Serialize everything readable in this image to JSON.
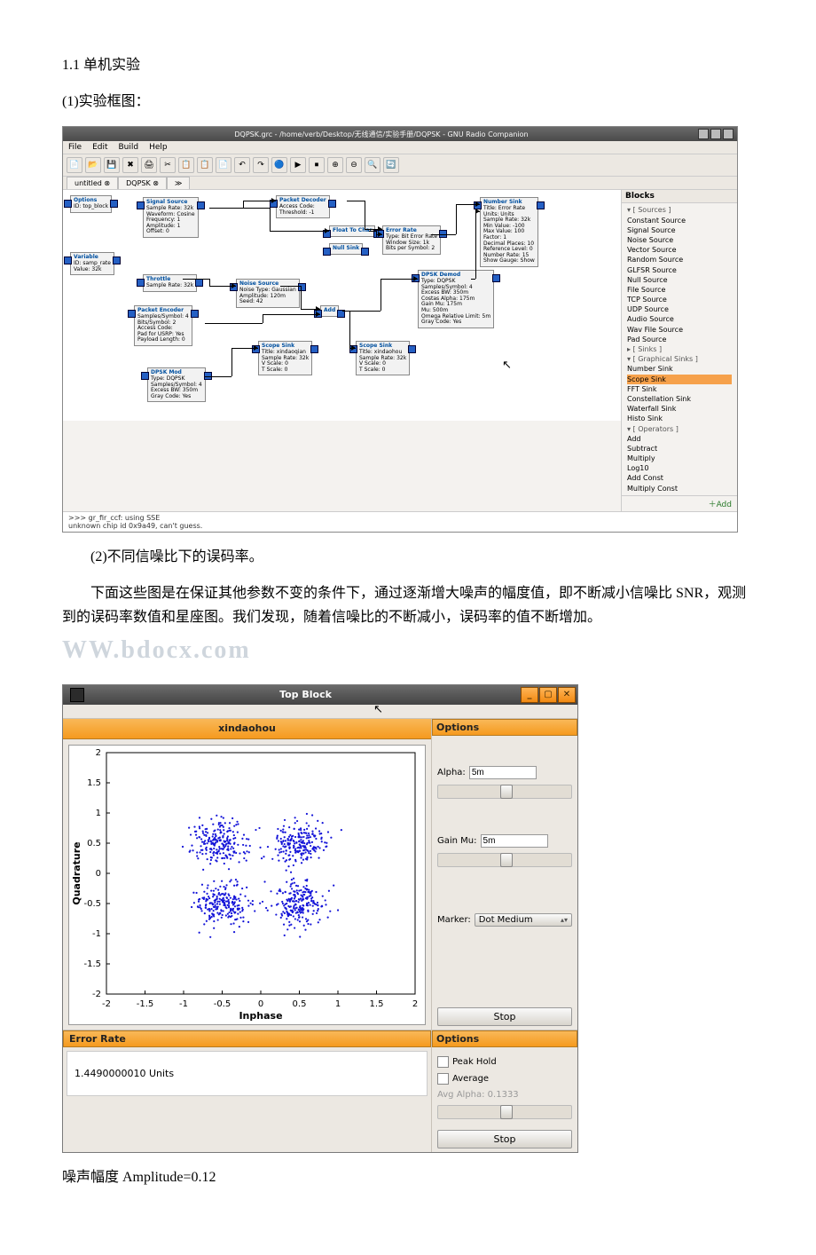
{
  "text": {
    "h1": "1.1 单机实验",
    "p1": "(1)实验框图：",
    "p2": "(2)不同信噪比下的误码率。",
    "p3_a": "下面这些图是在保证其他参数不变的条件下，通过逐渐增大噪声的幅度值，即不断减小信噪比 SNR，观测到的误码率数值和星座图。我们发现，随着信噪比的不断减小，误码率的值不断增加。",
    "wm": "WW.bdocx.com",
    "p4": "噪声幅度 Amplitude=0.12"
  },
  "grc": {
    "title": "DQPSK.grc - /home/verb/Desktop/无线通信/实验手册/DQPSK - GNU Radio Companion",
    "menu": [
      "File",
      "Edit",
      "Build",
      "Help"
    ],
    "tabs": [
      "untitled ⊗",
      "DQPSK ⊗",
      "≫"
    ],
    "toolbar_icons": [
      "📄",
      "📂",
      "💾",
      "✖",
      "🖨",
      "✂",
      "📋",
      "📋",
      "📄",
      "↶",
      "↷",
      "🔵",
      "▶",
      "⏹",
      "⊕",
      "⊖",
      "🔍",
      "🔄"
    ],
    "blocks_header": "Blocks",
    "side": [
      {
        "t": "▾ [ Sources ]",
        "c": "cat"
      },
      {
        "t": "Constant Source"
      },
      {
        "t": "Signal Source"
      },
      {
        "t": "Noise Source"
      },
      {
        "t": "Vector Source"
      },
      {
        "t": "Random Source"
      },
      {
        "t": "GLFSR Source"
      },
      {
        "t": "Null Source"
      },
      {
        "t": "File Source"
      },
      {
        "t": "TCP Source"
      },
      {
        "t": "UDP Source"
      },
      {
        "t": "Audio Source"
      },
      {
        "t": "Wav File Source"
      },
      {
        "t": "Pad Source"
      },
      {
        "t": "▸ [ Sinks ]",
        "c": "cat"
      },
      {
        "t": "▾ [ Graphical Sinks ]",
        "c": "cat"
      },
      {
        "t": "Number Sink"
      },
      {
        "t": "Scope Sink",
        "c": "sel"
      },
      {
        "t": "FFT Sink"
      },
      {
        "t": "Constellation Sink"
      },
      {
        "t": "Waterfall Sink"
      },
      {
        "t": "Histo Sink"
      },
      {
        "t": "▾ [ Operators ]",
        "c": "cat"
      },
      {
        "t": "Add"
      },
      {
        "t": "Subtract"
      },
      {
        "t": "Multiply"
      },
      {
        "t": "Log10"
      },
      {
        "t": "Add Const"
      },
      {
        "t": "Multiply Const"
      }
    ],
    "add_label": "＋Add",
    "status": [
      ">>> gr_fir_ccf: using SSE",
      "unknown chip id 0x9a49, can't guess."
    ],
    "blk": {
      "options": {
        "h": "Options",
        "l": [
          "ID: top_block"
        ]
      },
      "variable": {
        "h": "Variable",
        "l": [
          "ID: samp_rate",
          "Value: 32k"
        ]
      },
      "sig": {
        "h": "Signal Source",
        "l": [
          "Sample Rate: 32k",
          "Waveform: Cosine",
          "Frequency: 1",
          "Amplitude: 1",
          "Offset: 0"
        ]
      },
      "thr": {
        "h": "Throttle",
        "l": [
          "Sample Rate: 32k"
        ]
      },
      "noise": {
        "h": "Noise Source",
        "l": [
          "Noise Type: Gaussian",
          "Amplitude: 120m",
          "Seed: 42"
        ]
      },
      "penc": {
        "h": "Packet Encoder",
        "l": [
          "Samples/Symbol: 4",
          "Bits/Symbol: 2",
          "Access Code:",
          "Pad for USRP: Yes",
          "Payload Length: 0"
        ]
      },
      "pdec": {
        "h": "Packet Decoder",
        "l": [
          "Access Code:",
          "Threshold: -1"
        ]
      },
      "f2c": {
        "h": "Float To Char",
        "l": []
      },
      "null": {
        "h": "Null Sink",
        "l": []
      },
      "er": {
        "h": "Error Rate",
        "l": [
          "Type: Bit Error Rate",
          "Window Size: 1k",
          "Bits per Symbol: 2"
        ]
      },
      "add": {
        "h": "Add",
        "l": []
      },
      "dpskd": {
        "h": "DPSK Demod",
        "l": [
          "Type: DQPSK",
          "Samples/Symbol: 4",
          "Excess BW: 350m",
          "Costas Alpha: 175m",
          "Gain Mu: 175m",
          "Mu: 500m",
          "Omega Relative Limit: 5m",
          "Gray Code: Yes"
        ]
      },
      "dpskm": {
        "h": "DPSK Mod",
        "l": [
          "Type: DQPSK",
          "Samples/Symbol: 4",
          "Excess BW: 350m",
          "Gray Code: Yes"
        ]
      },
      "ss1": {
        "h": "Scope Sink",
        "l": [
          "Title: xindaoqian",
          "Sample Rate: 32k",
          "V Scale: 0",
          "T Scale: 0"
        ]
      },
      "ss2": {
        "h": "Scope Sink",
        "l": [
          "Title: xindaohou",
          "Sample Rate: 32k",
          "V Scale: 0",
          "T Scale: 0"
        ]
      },
      "num": {
        "h": "Number Sink",
        "l": [
          "Title: Error Rate",
          "Units: Units",
          "Sample Rate: 32k",
          "Min Value: -100",
          "Max Value: 100",
          "Factor: 1",
          "Decimal Places: 10",
          "Reference Level: 0",
          "Number Rate: 15",
          "Show Gauge: Show"
        ]
      }
    }
  },
  "tb": {
    "title": "Top Block",
    "plot_title": "xindaohou",
    "xlabel": "Inphase",
    "ylabel": "Quadrature",
    "xticks": [
      -2,
      -1.5,
      -1,
      -0.5,
      0,
      0.5,
      1,
      1.5,
      2
    ],
    "yticks": [
      -2,
      -1.5,
      -1,
      -0.5,
      0,
      0.5,
      1,
      1.5,
      2
    ],
    "xlim": [
      -2,
      2
    ],
    "ylim": [
      -2,
      2
    ],
    "centers": [
      [
        -0.5,
        0.5
      ],
      [
        0.5,
        0.5
      ],
      [
        -0.5,
        -0.5
      ],
      [
        0.5,
        -0.5
      ]
    ],
    "spread": 0.17,
    "pts_per": 220,
    "point_color": "#1414d8",
    "opts_title": "Options",
    "alpha_label": "Alpha:",
    "alpha_val": "5m",
    "gainmu_label": "Gain Mu:",
    "gainmu_val": "5m",
    "marker_label": "Marker:",
    "marker_val": "Dot Medium",
    "stop": "Stop",
    "err_title": "Error Rate",
    "err_val": "1.4490000010 Units",
    "opts2_title": "Options",
    "peak": "Peak Hold",
    "avg": "Average",
    "avga": "Avg Alpha: 0.1333"
  }
}
